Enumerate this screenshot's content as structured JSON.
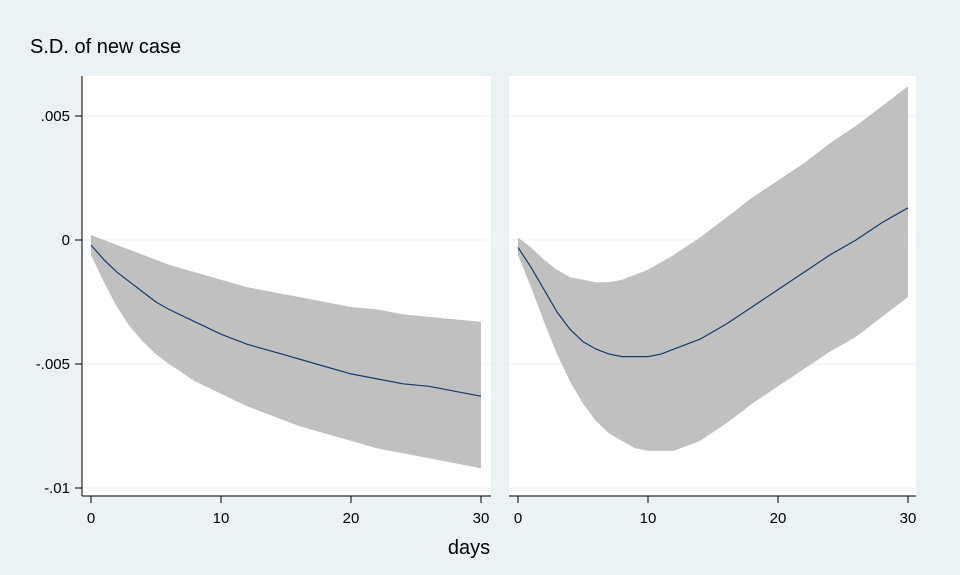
{
  "chart_data": {
    "type": "area",
    "title": "S.D. of new case",
    "xlabel": "days",
    "ylabel": "",
    "xlim": [
      0,
      30
    ],
    "ylim": [
      -0.01,
      0.006
    ],
    "x_ticks": [
      0,
      10,
      20,
      30
    ],
    "x_tick_labels": [
      "0",
      "10",
      "20",
      "30"
    ],
    "y_ticks": [
      0.005,
      0,
      -0.005,
      -0.01
    ],
    "y_tick_labels": [
      ".005",
      "0",
      "-.005",
      "-.01"
    ],
    "grid": true,
    "shared_y_axis": true,
    "colors": {
      "background": "#eaf2f3",
      "band": "#c0c0c0",
      "line": "#1a3a6b",
      "grid": "#eaf2f3"
    },
    "panels": [
      {
        "x": [
          0,
          1,
          2,
          3,
          4,
          5,
          6,
          8,
          10,
          12,
          14,
          16,
          18,
          20,
          22,
          24,
          26,
          28,
          30
        ],
        "series": [
          {
            "role": "estimate",
            "values": [
              -0.0002,
              -0.0008,
              -0.0013,
              -0.0017,
              -0.0021,
              -0.0025,
              -0.0028,
              -0.0033,
              -0.0038,
              -0.0042,
              -0.0045,
              -0.0048,
              -0.0051,
              -0.0054,
              -0.0056,
              -0.0058,
              -0.0059,
              -0.0061,
              -0.0063
            ]
          },
          {
            "role": "upper",
            "values": [
              0.0002,
              0.0,
              -0.0002,
              -0.0004,
              -0.0006,
              -0.0008,
              -0.001,
              -0.0013,
              -0.0016,
              -0.0019,
              -0.0021,
              -0.0023,
              -0.0025,
              -0.0027,
              -0.0028,
              -0.003,
              -0.0031,
              -0.0032,
              -0.0033
            ]
          },
          {
            "role": "lower",
            "values": [
              -0.0006,
              -0.0017,
              -0.0027,
              -0.0035,
              -0.0041,
              -0.0046,
              -0.005,
              -0.0057,
              -0.0062,
              -0.0067,
              -0.0071,
              -0.0075,
              -0.0078,
              -0.0081,
              -0.0084,
              -0.0086,
              -0.0088,
              -0.009,
              -0.0092
            ]
          }
        ]
      },
      {
        "x": [
          0,
          1,
          2,
          3,
          4,
          5,
          6,
          7,
          8,
          9,
          10,
          11,
          12,
          14,
          16,
          18,
          20,
          22,
          24,
          26,
          28,
          30
        ],
        "series": [
          {
            "role": "estimate",
            "values": [
              -0.0003,
              -0.0011,
              -0.002,
              -0.0029,
              -0.0036,
              -0.0041,
              -0.0044,
              -0.0046,
              -0.0047,
              -0.0047,
              -0.0047,
              -0.0046,
              -0.0044,
              -0.004,
              -0.0034,
              -0.0027,
              -0.002,
              -0.0013,
              -0.0006,
              0.0,
              0.0007,
              0.0013
            ]
          },
          {
            "role": "upper",
            "values": [
              0.0001,
              -0.0003,
              -0.0008,
              -0.0012,
              -0.0015,
              -0.0016,
              -0.0017,
              -0.0017,
              -0.0016,
              -0.0014,
              -0.0012,
              -0.0009,
              -0.0006,
              0.0001,
              0.0009,
              0.0017,
              0.0024,
              0.0031,
              0.0039,
              0.0046,
              0.0054,
              0.0062
            ]
          },
          {
            "role": "lower",
            "values": [
              -0.0006,
              -0.0019,
              -0.0033,
              -0.0046,
              -0.0057,
              -0.0066,
              -0.0073,
              -0.0078,
              -0.0081,
              -0.0084,
              -0.0085,
              -0.0085,
              -0.0085,
              -0.0081,
              -0.0074,
              -0.0066,
              -0.0059,
              -0.0052,
              -0.0045,
              -0.0039,
              -0.0031,
              -0.0023
            ]
          }
        ]
      }
    ]
  }
}
